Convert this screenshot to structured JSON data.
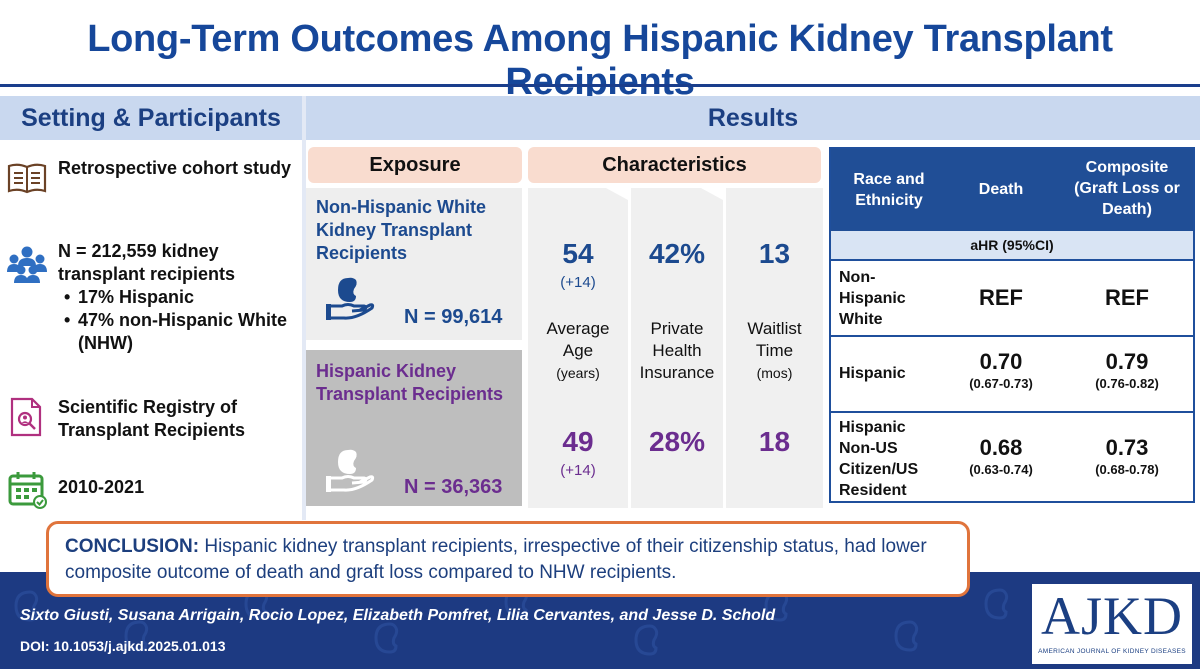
{
  "title": "Long-Term Outcomes Among Hispanic Kidney Transplant Recipients",
  "headers": {
    "setting": "Setting & Participants",
    "results": "Results"
  },
  "setting": {
    "design": "Retrospective cohort study",
    "participants": "N = 212,559 kidney transplant recipients",
    "bullets": [
      "17% Hispanic",
      "47% non-Hispanic White (NHW)"
    ],
    "registry": "Scientific Registry of Transplant Recipients",
    "years": "2010-2021",
    "icons": [
      "book-icon",
      "people-icon",
      "registry-document-icon",
      "calendar-icon"
    ]
  },
  "exposure": {
    "header": "Exposure",
    "groups": [
      {
        "label": "Non-Hispanic White Kidney Transplant Recipients",
        "n": "N = 99,614",
        "color": "#1c4a8f"
      },
      {
        "label": "Hispanic Kidney Transplant Recipients",
        "n": "N = 36,363",
        "color": "#6b2d8f"
      }
    ]
  },
  "characteristics": {
    "header": "Characteristics",
    "age": {
      "label1": "Average",
      "label2": "Age",
      "unit": "(years)",
      "nhw": "54",
      "nhw_sd": "(+14)",
      "hisp": "49",
      "hisp_sd": "(+14)"
    },
    "insurance": {
      "label1": "Private",
      "label2": "Health",
      "label3": "Insurance",
      "nhw": "42%",
      "hisp": "28%"
    },
    "waitlist": {
      "label1": "Waitlist",
      "label2": "Time",
      "unit": "(mos)",
      "nhw": "13",
      "hisp": "18"
    }
  },
  "table": {
    "col_race": "Race and Ethnicity",
    "col_death": "Death",
    "col_composite": "Composite (Graft Loss or Death)",
    "subheader": "aHR (95%CI)",
    "rows": [
      {
        "label": "Non-Hispanic White",
        "death": "REF",
        "death_ci": "",
        "composite": "REF",
        "composite_ci": ""
      },
      {
        "label": "Hispanic",
        "death": "0.70",
        "death_ci": "(0.67-0.73)",
        "composite": "0.79",
        "composite_ci": "(0.76-0.82)"
      },
      {
        "label": "Hispanic Non-US Citizen/US Resident",
        "death": "0.68",
        "death_ci": "(0.63-0.74)",
        "composite": "0.73",
        "composite_ci": "(0.68-0.78)"
      }
    ]
  },
  "conclusion": {
    "label": "CONCLUSION:",
    "text": "Hispanic kidney transplant recipients, irrespective of their citizenship status, had lower composite outcome of death and graft loss compared to NHW recipients."
  },
  "footer": {
    "authors": "Sixto Giusti, Susana Arrigain, Rocio Lopez, Elizabeth Pomfret, Lilia Cervantes, and Jesse D. Schold",
    "doi": "DOI: 10.1053/j.ajkd.2025.01.013"
  },
  "logo": {
    "text": "AJKD",
    "subtitle": "AMERICAN JOURNAL OF KIDNEY DISEASES"
  },
  "colors": {
    "title": "#16479a",
    "nhw": "#1c4a8f",
    "hispanic": "#6b2d8f",
    "accent": "#e0743c",
    "footer": "#1d3a82"
  }
}
